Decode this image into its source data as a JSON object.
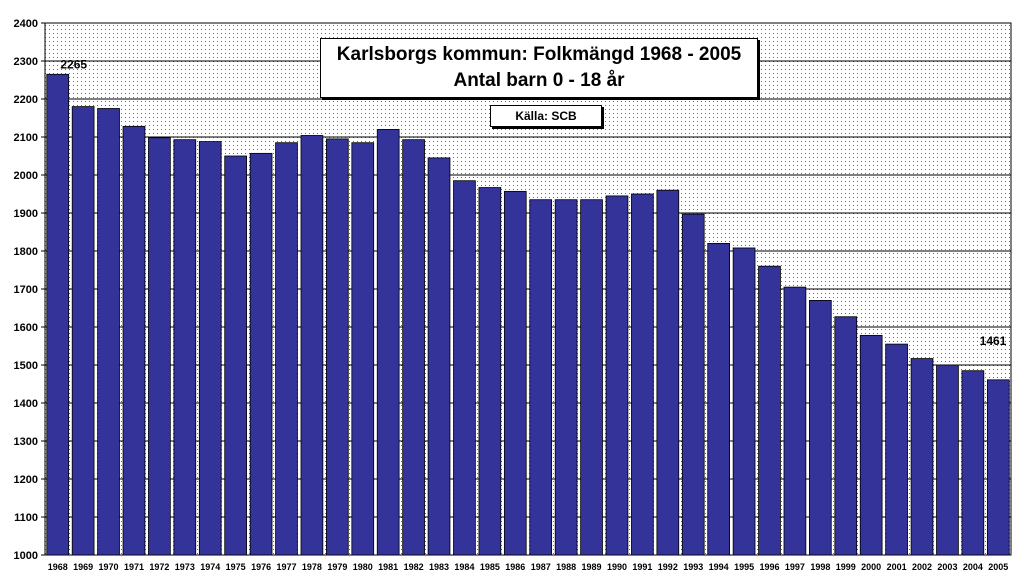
{
  "chart_data": {
    "type": "bar",
    "title": "Karlsborgs kommun: Folkmängd 1968 - 2005",
    "subtitle": "Antal barn 0 - 18 år",
    "source": "Källa: SCB",
    "xlabel": "",
    "ylabel": "",
    "ylim": [
      1000,
      2400
    ],
    "ystep": 100,
    "grid": true,
    "legend": "none",
    "bar_color": "#333399",
    "categories": [
      "1968",
      "1969",
      "1970",
      "1971",
      "1972",
      "1973",
      "1974",
      "1975",
      "1976",
      "1977",
      "1978",
      "1979",
      "1980",
      "1981",
      "1982",
      "1983",
      "1984",
      "1985",
      "1986",
      "1987",
      "1988",
      "1989",
      "1990",
      "1991",
      "1992",
      "1993",
      "1994",
      "1995",
      "1996",
      "1997",
      "1998",
      "1999",
      "2000",
      "2001",
      "2002",
      "2003",
      "2004",
      "2005"
    ],
    "values": [
      2265,
      2180,
      2175,
      2128,
      2098,
      2093,
      2088,
      2050,
      2057,
      2085,
      2104,
      2095,
      2085,
      2120,
      2093,
      2045,
      1985,
      1967,
      1957,
      1935,
      1935,
      1935,
      1945,
      1950,
      1960,
      1897,
      1820,
      1808,
      1760,
      1705,
      1670,
      1627,
      1578,
      1555,
      1517,
      1500,
      1485,
      1461
    ],
    "data_labels": [
      {
        "index": 0,
        "text": "2265"
      },
      {
        "index": 37,
        "text": "1461"
      }
    ]
  }
}
